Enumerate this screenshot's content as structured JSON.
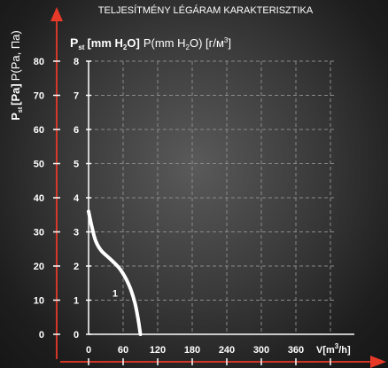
{
  "chart_data": {
    "type": "line",
    "title": "TELJESÍTMÉNY LÉGÁRAM KARAKTERISZTIKA",
    "inner_ylabel": {
      "bold_prefix": "P",
      "bold_sub": "st",
      "bold_main": "[mm H",
      "bold_sub2": "2",
      "bold_close": "O]",
      "normal_main": "P(mm H",
      "normal_sub": "2",
      "normal_mid": "O) [г/м",
      "normal_sup": "3",
      "normal_close": "]"
    },
    "outer_ylabel": {
      "bold_prefix": "P",
      "bold_sub": "st",
      "bold_main": "[Pa]",
      "normal": "P(Pa, Па)"
    },
    "xlabel": {
      "main": "V[m",
      "sup": "3",
      "close": "/h]"
    },
    "x_ticks": [
      "0",
      "60",
      "120",
      "180",
      "240",
      "300",
      "360"
    ],
    "x_tick_values": [
      0,
      60,
      120,
      180,
      240,
      300,
      360
    ],
    "y_inner_ticks": [
      "0",
      "1",
      "2",
      "3",
      "4",
      "5",
      "6",
      "7",
      "8"
    ],
    "y_inner_values": [
      0,
      1,
      2,
      3,
      4,
      5,
      6,
      7,
      8
    ],
    "y_outer_ticks": [
      "0",
      "10",
      "20",
      "30",
      "40",
      "50",
      "60",
      "70",
      "80"
    ],
    "xlim": [
      0,
      400
    ],
    "ylim": [
      0,
      8
    ],
    "grid": true,
    "series": [
      {
        "label_text": "1",
        "color": "#ffffff",
        "points": [
          {
            "x": 0,
            "y": 3.6
          },
          {
            "x": 5,
            "y": 3.2
          },
          {
            "x": 12,
            "y": 2.75
          },
          {
            "x": 22,
            "y": 2.45
          },
          {
            "x": 38,
            "y": 2.2
          },
          {
            "x": 55,
            "y": 1.9
          },
          {
            "x": 70,
            "y": 1.45
          },
          {
            "x": 80,
            "y": 0.95
          },
          {
            "x": 86,
            "y": 0.45
          },
          {
            "x": 90,
            "y": 0.0
          }
        ]
      }
    ]
  }
}
